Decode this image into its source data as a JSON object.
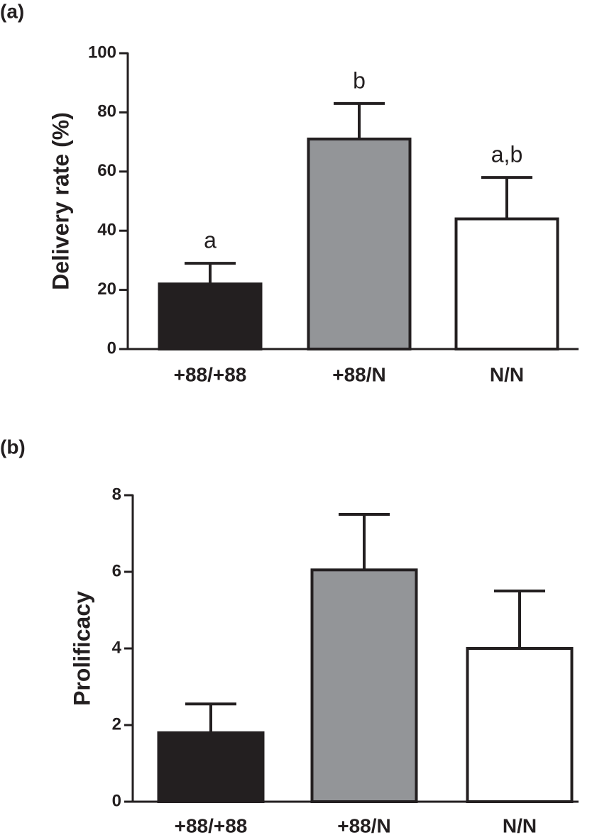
{
  "chart_data": [
    {
      "type": "bar",
      "panel_label": "(a)",
      "ylabel": "Delivery rate (%)",
      "categories": [
        "+88/+88",
        "+88/N",
        "N/N"
      ],
      "values": [
        22,
        71,
        44
      ],
      "errors": [
        7,
        12,
        14
      ],
      "annotations": [
        "a",
        "b",
        "a,b"
      ],
      "colors": [
        "#231f20",
        "#939598",
        "#ffffff"
      ],
      "ylim": [
        0,
        100
      ],
      "yticks": [
        0,
        20,
        40,
        60,
        80,
        100
      ]
    },
    {
      "type": "bar",
      "panel_label": "(b)",
      "ylabel": "Prolificacy",
      "categories": [
        "+88/+88",
        "+88/N",
        "N/N"
      ],
      "values": [
        1.8,
        6.05,
        4.0
      ],
      "errors": [
        0.75,
        1.45,
        1.5
      ],
      "colors": [
        "#231f20",
        "#939598",
        "#ffffff"
      ],
      "ylim": [
        0,
        8
      ],
      "yticks": [
        0,
        2,
        4,
        6,
        8
      ]
    }
  ]
}
